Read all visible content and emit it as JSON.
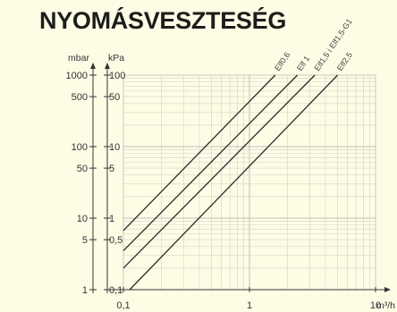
{
  "title": "NYOMÁSVESZTESÉG",
  "chart_data": {
    "type": "line",
    "x_scale": "log",
    "y_scale": "log",
    "xlim": [
      0.1,
      10
    ],
    "ylim": [
      1,
      1000
    ],
    "x_unit": "m³/h",
    "y_units": [
      "mbar",
      "kPa"
    ],
    "x_ticks": [
      {
        "value": 0.1,
        "label": "0,1"
      },
      {
        "value": 1,
        "label": "1"
      },
      {
        "value": 10,
        "label": "10"
      }
    ],
    "y_ticks_mbar": [
      {
        "value": 1000,
        "label": "1000"
      },
      {
        "value": 500,
        "label": "500"
      },
      {
        "value": 100,
        "label": "100"
      },
      {
        "value": 50,
        "label": "50"
      },
      {
        "value": 10,
        "label": "10"
      },
      {
        "value": 5,
        "label": "5"
      },
      {
        "value": 1,
        "label": "1"
      }
    ],
    "y_ticks_kpa": [
      {
        "value": 1000,
        "label": "100"
      },
      {
        "value": 500,
        "label": "50"
      },
      {
        "value": 100,
        "label": "10"
      },
      {
        "value": 50,
        "label": "5"
      },
      {
        "value": 10,
        "label": "1"
      },
      {
        "value": 5,
        "label": "0,5"
      },
      {
        "value": 1,
        "label": "0,1"
      }
    ],
    "grid": true,
    "series": [
      {
        "name": "Elf0,6",
        "x": [
          0.1,
          1.6
        ],
        "y": [
          6.7,
          1000
        ]
      },
      {
        "name": "Elf 1",
        "x": [
          0.1,
          2.4
        ],
        "y": [
          3.5,
          1000
        ]
      },
      {
        "name": "Elf1,5 i Elf1,5-G1",
        "x": [
          0.1,
          3.3
        ],
        "y": [
          2.0,
          1000
        ]
      },
      {
        "name": "Elf2,5",
        "x": [
          0.1,
          5.0
        ],
        "y": [
          0.81,
          1000
        ]
      }
    ]
  }
}
